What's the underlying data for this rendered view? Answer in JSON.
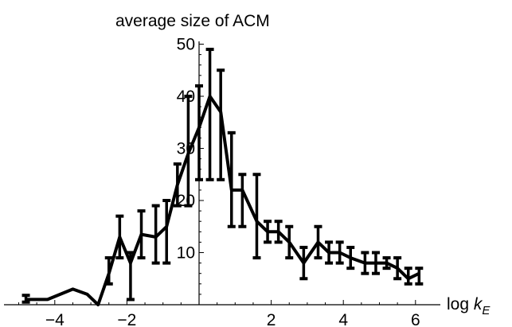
{
  "chart_data": {
    "type": "line",
    "ylabel": "average size of ACM",
    "xlabel_main": "log ",
    "xlabel_var": "k",
    "xlabel_sub": "E",
    "xlim": [
      -5,
      6.5
    ],
    "ylim": [
      0,
      50
    ],
    "xticks": [
      -4,
      -2,
      2,
      4,
      6
    ],
    "xtick_labels": [
      "−4",
      "−2",
      "2",
      "4",
      "6"
    ],
    "yticks": [
      10,
      20,
      30,
      40,
      50
    ],
    "ytick_labels": [
      "10",
      "20",
      "30",
      "40",
      "50"
    ],
    "grid": false,
    "series": [
      {
        "color": "#000000",
        "x": [
          -4.8,
          -4.2,
          -3.5,
          -3.1,
          -2.8,
          -2.5,
          -2.2,
          -1.9,
          -1.6,
          -1.2,
          -0.9,
          -0.6,
          -0.3,
          0.0,
          0.3,
          0.6,
          0.9,
          1.2,
          1.6,
          1.9,
          2.2,
          2.5,
          2.9,
          3.3,
          3.6,
          3.9,
          4.2,
          4.6,
          4.9,
          5.2,
          5.5,
          5.8,
          6.1
        ],
        "y": [
          1,
          1,
          3,
          2,
          0,
          6,
          13,
          8,
          13.5,
          13,
          15,
          23,
          29,
          34,
          40,
          37,
          22,
          22,
          16,
          14,
          14,
          12,
          8,
          12,
          10,
          10,
          9,
          8,
          8,
          8,
          7,
          5,
          6
        ],
        "err_low": [
          0.5,
          null,
          null,
          null,
          null,
          4,
          9,
          1,
          9,
          8,
          8,
          19,
          19,
          24,
          24,
          24,
          15,
          15,
          9,
          12,
          12,
          9,
          5,
          9,
          8,
          8,
          7,
          6,
          6,
          7,
          5,
          4,
          4
        ],
        "err_high": [
          1.8,
          null,
          null,
          null,
          null,
          9,
          17,
          10,
          18,
          19,
          20,
          27,
          40,
          42,
          49,
          45,
          33,
          25,
          25,
          16,
          16,
          15,
          11,
          15,
          12,
          12,
          11,
          10,
          10,
          9,
          9,
          7,
          7
        ]
      }
    ]
  }
}
